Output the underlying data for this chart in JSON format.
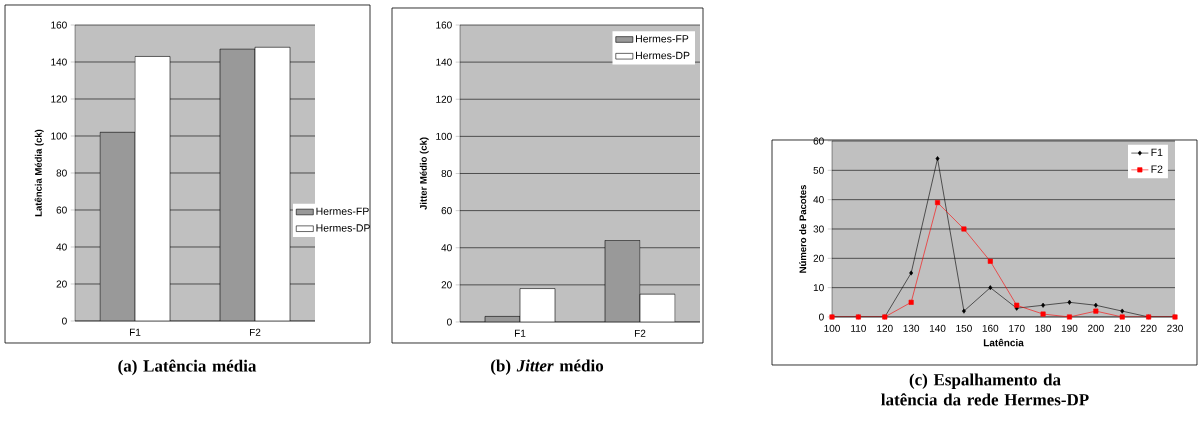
{
  "chart_data": [
    {
      "type": "bar",
      "title": "(a) Latência média",
      "ylabel": "Latência Média (ck)",
      "categories": [
        "F1",
        "F2"
      ],
      "series": [
        {
          "name": "Hermes-FP",
          "color": "#999999",
          "values": [
            102,
            147
          ]
        },
        {
          "name": "Hermes-DP",
          "color": "#ffffff",
          "values": [
            143,
            148
          ]
        }
      ],
      "ylim": [
        0,
        160
      ],
      "yticks": [
        0,
        20,
        40,
        60,
        80,
        100,
        120,
        140,
        160
      ],
      "grid": "y",
      "legend": "right"
    },
    {
      "type": "bar",
      "title": "(b) *Jitter* médio",
      "ylabel": "Jitter Médio (ck)",
      "categories": [
        "F1",
        "F2"
      ],
      "series": [
        {
          "name": "Hermes-FP",
          "color": "#999999",
          "values": [
            3,
            44
          ]
        },
        {
          "name": "Hermes-DP",
          "color": "#ffffff",
          "values": [
            18,
            15
          ]
        }
      ],
      "ylim": [
        0,
        160
      ],
      "yticks": [
        0,
        20,
        40,
        60,
        80,
        100,
        120,
        140,
        160
      ],
      "grid": "y",
      "legend": "top right"
    },
    {
      "type": "line",
      "title": "(c) Espalhamento da latência da rede Hermes-DP",
      "xlabel": "Latência",
      "ylabel": "Número de Pacotes",
      "categories": [
        "100",
        "110",
        "120",
        "130",
        "140",
        "150",
        "160",
        "170",
        "180",
        "190",
        "200",
        "210",
        "220",
        "230"
      ],
      "series": [
        {
          "name": "F1",
          "color": "#000000",
          "marker": "diamond",
          "values": [
            0,
            0,
            0,
            15,
            54,
            2,
            10,
            3,
            4,
            5,
            4,
            2,
            0,
            0
          ]
        },
        {
          "name": "F2",
          "color": "#ff0000",
          "marker": "square",
          "values": [
            0,
            0,
            0,
            5,
            39,
            30,
            19,
            4,
            1,
            0,
            2,
            0,
            0,
            0
          ]
        }
      ],
      "ylim": [
        0,
        60
      ],
      "yticks": [
        0,
        10,
        20,
        30,
        40,
        50,
        60
      ],
      "grid": "y",
      "legend": "top right"
    }
  ]
}
